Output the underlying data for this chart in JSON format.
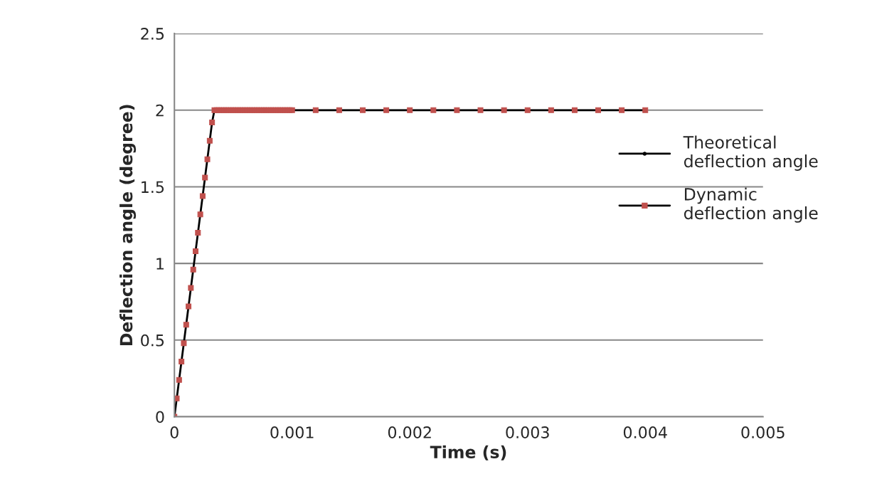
{
  "chart_data": {
    "type": "line",
    "xlabel": "Time (s)",
    "ylabel": "Deflection angle (degree)",
    "xlim": [
      0,
      0.005
    ],
    "xticks": [
      0,
      0.001,
      0.002,
      0.003,
      0.004,
      0.005
    ],
    "ylim": [
      0,
      2.5
    ],
    "yticks": [
      0,
      0.5,
      1,
      1.5,
      2,
      2.5
    ],
    "grid": "y",
    "legend": "right",
    "series": [
      {
        "name": "Theoretical deflection angle",
        "color": "#000000",
        "marker": "circle"
      },
      {
        "name": "Dynamic deflection angle",
        "color": "#000000",
        "marker": "square",
        "colors": [
          "#c0504d",
          "#c0504d",
          "#c0504d",
          "#c0504d",
          "#c0504d",
          "#c0504d",
          "#c0504d",
          "#c0504d",
          "#c0504d",
          "#c0504d",
          "#c0504d",
          "#c0504d",
          "#c0504d",
          "#c0504d",
          "#c0504d",
          "#c0504d",
          "#c0504d",
          "#c0504d",
          "#c0504d",
          "#c0504d",
          "#c0504d",
          "#c0504d",
          "#c0504d",
          "#c0504d",
          "#c0504d",
          "#c0504d",
          "#c0504d",
          "#c0504d",
          "#c0504d",
          "#c0504d",
          "#c0504d",
          "#c0504d",
          "#c0504d",
          "#c0504d",
          "#c0504d",
          "#c0504d",
          "#c0504d",
          "#c0504d",
          "#c0504d",
          "#c0504d",
          "#c0504d",
          "#c0504d",
          "#c0504d",
          "#c0504d",
          "#c0504d",
          "#c0504d",
          "#c0504d",
          "#c0504d",
          "#c0504d",
          "#c0504d",
          "#c0504d",
          "#c0504d",
          "#c0504d",
          "#c0504d",
          "#c0504d",
          "#c0504d",
          "#c0504d",
          "#c0504d",
          "#c0504d",
          "#c0504d",
          "#c0504d",
          "#c0504d",
          "#c0504d",
          "#c0504d",
          "#c0504d",
          "#c0504d"
        ],
        "x": [
          0,
          2e-05,
          4e-05,
          6e-05,
          8e-05,
          0.0001,
          0.00012,
          0.00014,
          0.00016,
          0.00018,
          0.0002,
          0.00022,
          0.00024,
          0.00026,
          0.00028,
          0.0003,
          0.00032,
          0.00034,
          0.00036,
          0.00038,
          0.0004,
          0.00042,
          0.00044,
          0.00046,
          0.00048,
          0.0005,
          0.00052,
          0.00054,
          0.00056,
          0.00058,
          0.0006,
          0.00062,
          0.00064,
          0.00066,
          0.00068,
          0.0007,
          0.00072,
          0.00074,
          0.00076,
          0.00078,
          0.0008,
          0.00082,
          0.00084,
          0.00086,
          0.00088,
          0.0009,
          0.00092,
          0.00094,
          0.00096,
          0.00098,
          0.001,
          0.0012,
          0.0014,
          0.0016,
          0.0018,
          0.002,
          0.0022,
          0.0024,
          0.0026,
          0.0028,
          0.003,
          0.0032,
          0.0034,
          0.0036,
          0.0038,
          0.004
        ],
        "values": [
          0,
          0.12,
          0.24,
          0.36,
          0.48,
          0.6,
          0.72,
          0.84,
          0.96,
          1.08,
          1.2,
          1.32,
          1.44,
          1.56,
          1.68,
          1.8,
          1.92,
          2,
          2,
          2,
          2,
          2,
          2,
          2,
          2,
          2,
          2,
          2,
          2,
          2,
          2,
          2,
          2,
          2,
          2,
          2,
          2,
          2,
          2,
          2,
          2,
          2,
          2,
          2,
          2,
          2,
          2,
          2,
          2,
          2,
          2,
          2,
          2,
          2,
          2,
          2,
          2,
          2,
          2,
          2,
          2,
          2,
          2,
          2,
          2,
          2
        ]
      }
    ]
  }
}
